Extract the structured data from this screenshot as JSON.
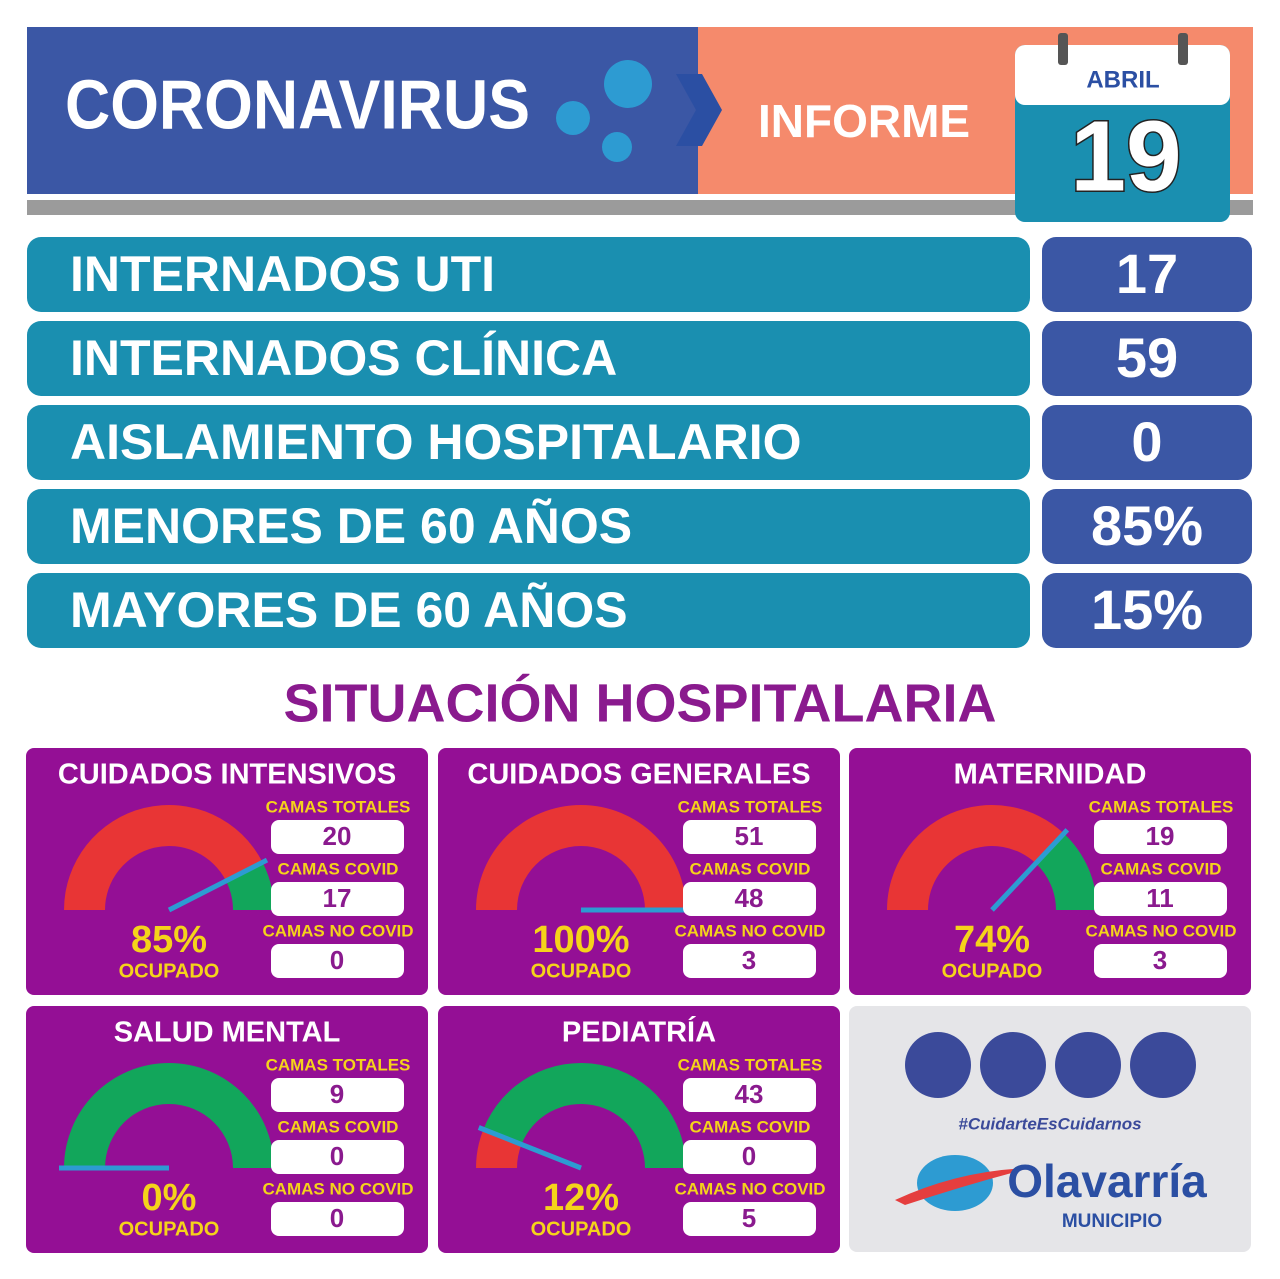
{
  "header": {
    "title": "CORONAVIRUS",
    "subtitle": "INFORME",
    "month": "ABRIL",
    "day": "19"
  },
  "stats": [
    {
      "label": "INTERNADOS UTI",
      "value": "17"
    },
    {
      "label": "INTERNADOS CLÍNICA",
      "value": "59"
    },
    {
      "label": "AISLAMIENTO HOSPITALARIO",
      "value": "0"
    },
    {
      "label": "MENORES DE 60 AÑOS",
      "value": "85%"
    },
    {
      "label": "MAYORES DE 60 AÑOS",
      "value": "15%"
    }
  ],
  "section_title": "SITUACIÓN HOSPITALARIA",
  "units": [
    {
      "name": "CUIDADOS INTENSIVOS",
      "occupancy": {
        "value": 85,
        "label": "85%"
      },
      "status": "OCUPADO",
      "fields": [
        {
          "label": "CAMAS TOTALES",
          "value": "20"
        },
        {
          "label": "CAMAS COVID",
          "value": "17"
        },
        {
          "label": "CAMAS NO COVID",
          "value": "0"
        }
      ]
    },
    {
      "name": "CUIDADOS GENERALES",
      "occupancy": {
        "value": 100,
        "label": "100%"
      },
      "status": "OCUPADO",
      "fields": [
        {
          "label": "CAMAS TOTALES",
          "value": "51"
        },
        {
          "label": "CAMAS COVID",
          "value": "48"
        },
        {
          "label": "CAMAS NO COVID",
          "value": "3"
        }
      ]
    },
    {
      "name": "MATERNIDAD",
      "occupancy": {
        "value": 74,
        "label": "74%"
      },
      "status": "OCUPADO",
      "fields": [
        {
          "label": "CAMAS TOTALES",
          "value": "19"
        },
        {
          "label": "CAMAS COVID",
          "value": "11"
        },
        {
          "label": "CAMAS NO COVID",
          "value": "3"
        }
      ]
    },
    {
      "name": "SALUD MENTAL",
      "occupancy": {
        "value": 0,
        "label": "0%"
      },
      "status": "OCUPADO",
      "fields": [
        {
          "label": "CAMAS TOTALES",
          "value": "9"
        },
        {
          "label": "CAMAS COVID",
          "value": "0"
        },
        {
          "label": "CAMAS NO COVID",
          "value": "0"
        }
      ]
    },
    {
      "name": "PEDIATRÍA",
      "occupancy": {
        "value": 12,
        "label": "12%"
      },
      "status": "OCUPADO",
      "fields": [
        {
          "label": "CAMAS TOTALES",
          "value": "43"
        },
        {
          "label": "CAMAS COVID",
          "value": "0"
        },
        {
          "label": "CAMAS NO COVID",
          "value": "5"
        }
      ]
    }
  ],
  "footer": {
    "hashtag": "#CuidarteEsCuidarnos",
    "brand": "Olavarría",
    "subbrand": "MUNICIPIO"
  }
}
